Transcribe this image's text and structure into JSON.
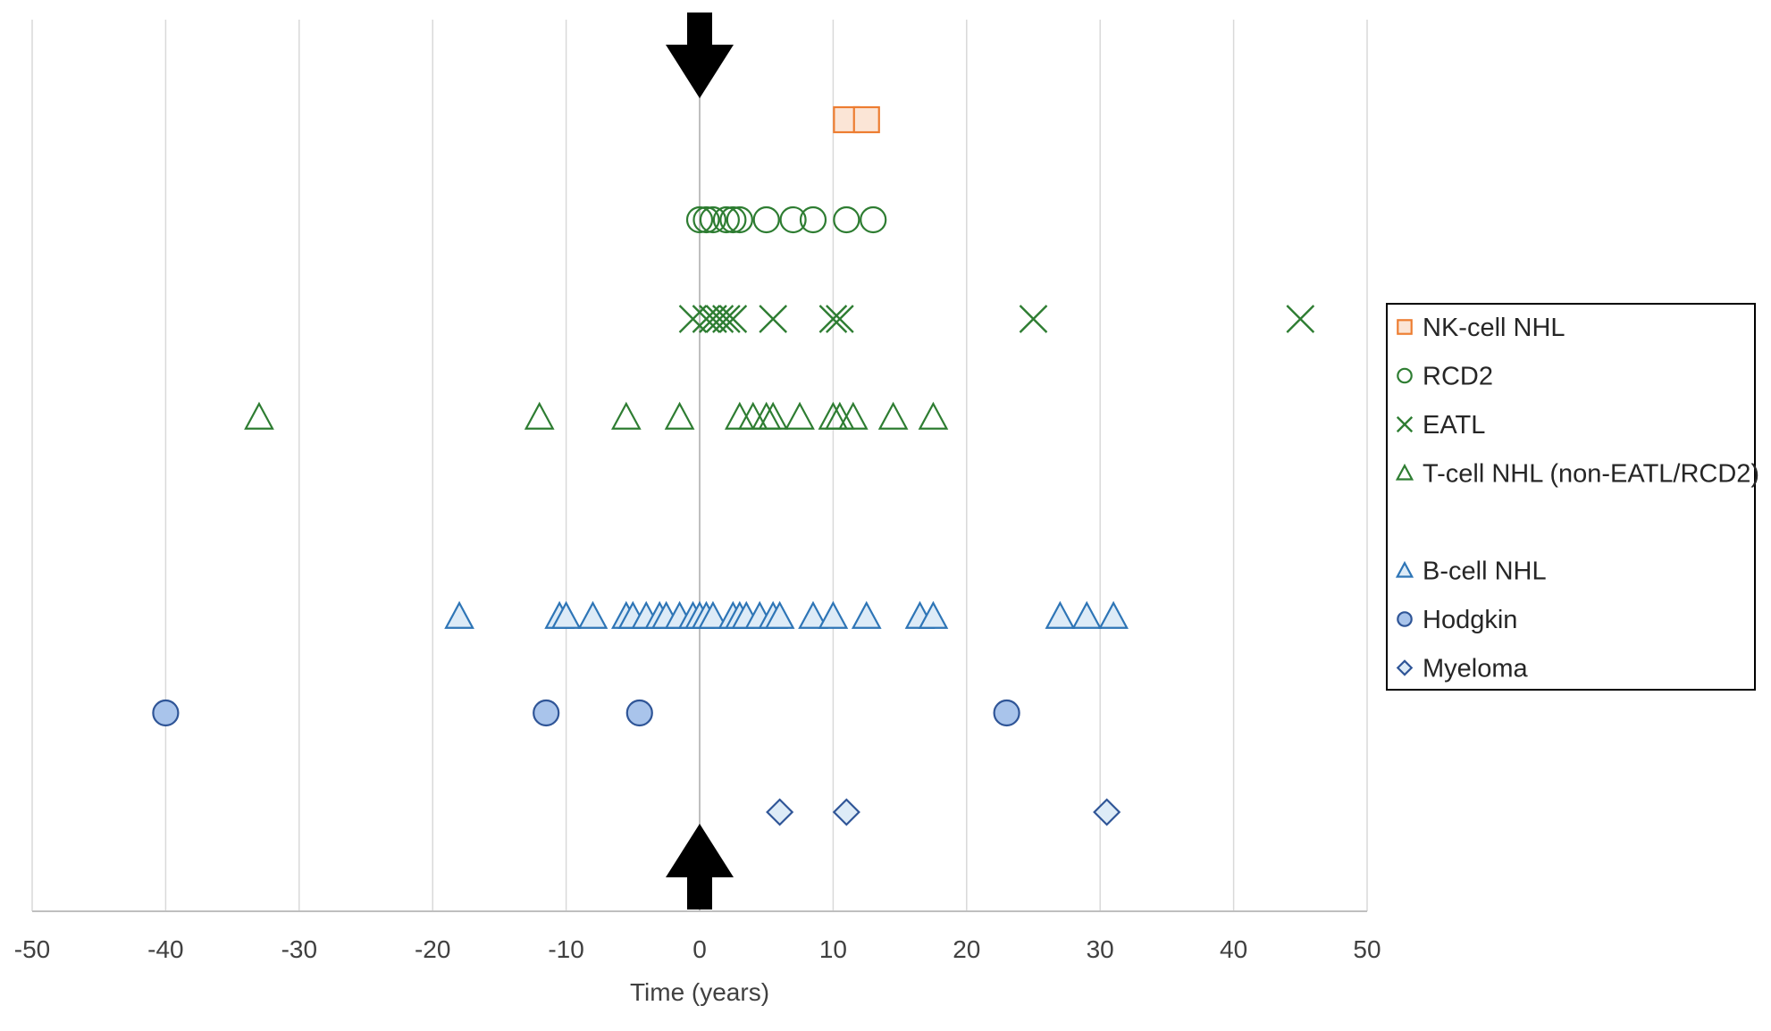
{
  "chart_data": {
    "type": "scatter",
    "title": "",
    "xlabel": "Time (years)",
    "ylabel": "",
    "xlim": [
      -50,
      50
    ],
    "xticks": [
      "-50",
      "-40",
      "-30",
      "-20",
      "-10",
      "0",
      "10",
      "20",
      "30",
      "40",
      "50"
    ],
    "grid": "vertical",
    "legend_position": "right",
    "reference_line_x": 0,
    "markers_at_x0": [
      "down-arrow-top",
      "up-arrow-bottom"
    ],
    "series": [
      {
        "name": "NK-cell NHL",
        "marker": "square",
        "stroke": "#ED7D31",
        "fill": "#FBE5D6",
        "x": [
          11,
          12.5
        ]
      },
      {
        "name": "RCD2",
        "marker": "circle-open",
        "stroke": "#2E7D32",
        "fill": "none",
        "x": [
          0,
          0.5,
          1,
          2,
          2.5,
          3,
          5,
          7,
          8.5,
          11,
          13
        ]
      },
      {
        "name": "EATL",
        "marker": "x",
        "stroke": "#2E7D32",
        "fill": "none",
        "x": [
          -0.5,
          0.5,
          1,
          1.5,
          2,
          2.5,
          5.5,
          10,
          10.5,
          25,
          45
        ]
      },
      {
        "name": "T-cell NHL (non-EATL/RCD2)",
        "marker": "triangle-open",
        "stroke": "#2E7D32",
        "fill": "none",
        "x": [
          -33,
          -12,
          -5.5,
          -1.5,
          3,
          4,
          5,
          5.5,
          7.5,
          10,
          10.5,
          11.5,
          14.5,
          17.5
        ]
      },
      {
        "name": "",
        "marker": "none",
        "stroke": "none",
        "fill": "none",
        "x": []
      },
      {
        "name": "B-cell NHL",
        "marker": "triangle",
        "stroke": "#2E75B6",
        "fill": "#DDEBF7",
        "x": [
          -18,
          -10.5,
          -10,
          -8,
          -5.5,
          -5,
          -4,
          -3,
          -2.5,
          -1.5,
          -0.5,
          0,
          0.5,
          1,
          2.5,
          3,
          3.5,
          4.5,
          5.5,
          6,
          8.5,
          10,
          12.5,
          16.5,
          17.5,
          27,
          29,
          31
        ]
      },
      {
        "name": "Hodgkin",
        "marker": "circle",
        "stroke": "#2F5597",
        "fill": "#A9C4EB",
        "x": [
          -40,
          -11.5,
          -4.5,
          23
        ]
      },
      {
        "name": "Myeloma",
        "marker": "diamond",
        "stroke": "#2F5597",
        "fill": "#DDEBF7",
        "x": [
          6,
          11,
          30.5
        ]
      }
    ]
  }
}
